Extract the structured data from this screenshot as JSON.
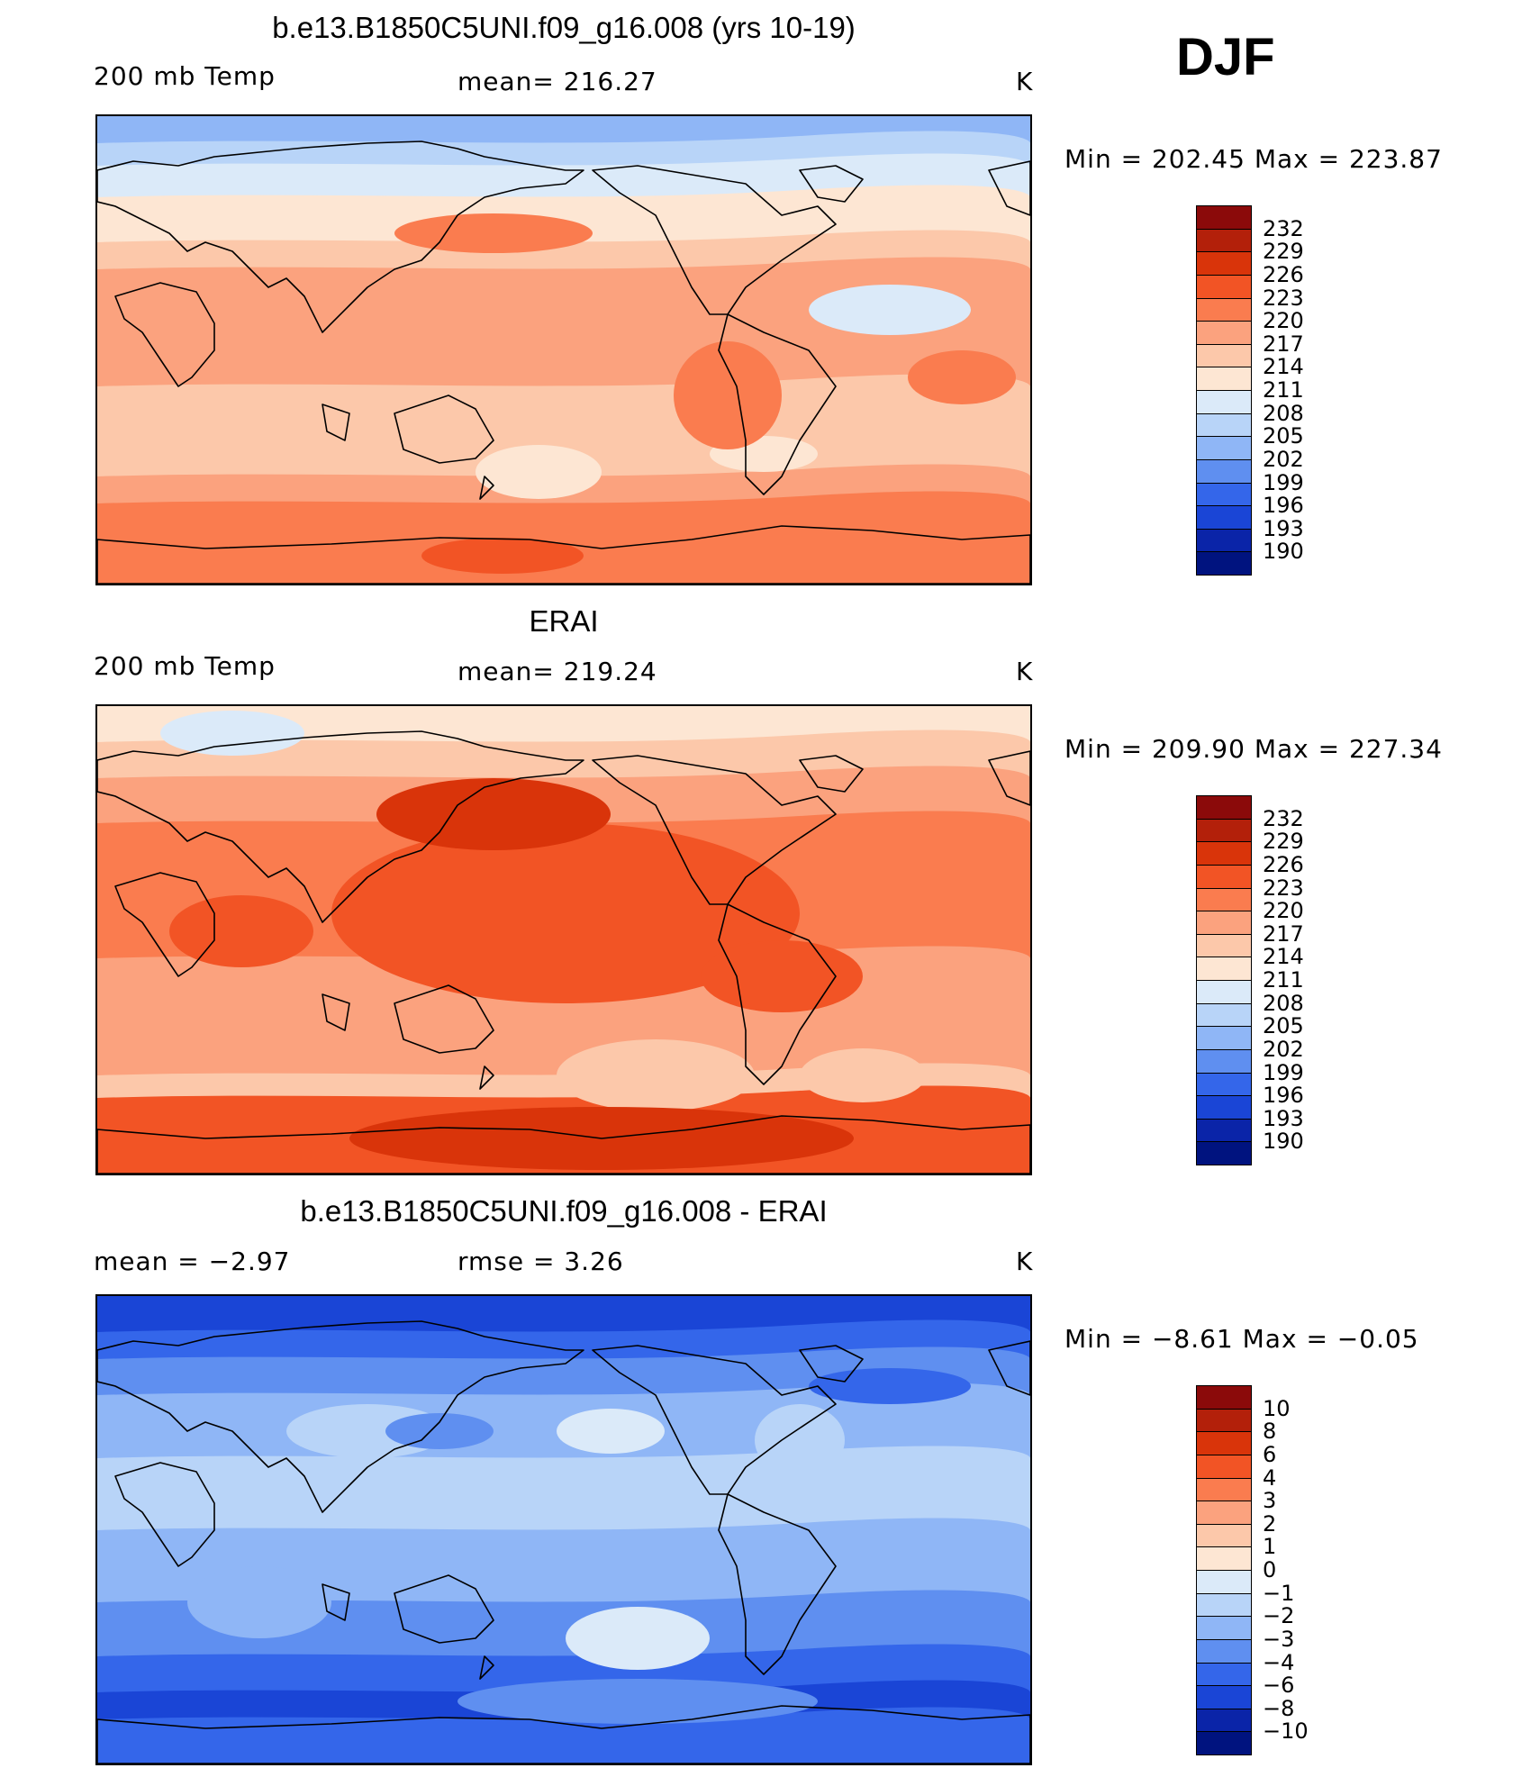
{
  "season": "DJF",
  "panels": [
    {
      "id": "model",
      "title": "b.e13.B1850C5UNI.f09_g16.008 (yrs 10-19)",
      "left_label": "200 mb Temp",
      "center_label": "mean=  216.27",
      "units": "K",
      "minmax": "Min  =  202.45  Max  =  223.87",
      "legend": {
        "labels": [
          "232",
          "229",
          "226",
          "223",
          "220",
          "217",
          "214",
          "211",
          "208",
          "205",
          "202",
          "199",
          "196",
          "193",
          "190"
        ],
        "colors": [
          "#8b0a0a",
          "#b3200a",
          "#d9340a",
          "#f25425",
          "#fa7c4f",
          "#fba27e",
          "#fcc8aa",
          "#fde6d3",
          "#dbeaf9",
          "#b8d4f8",
          "#8fb6f6",
          "#5f8ff0",
          "#3466ea",
          "#1a45d6",
          "#0a24a8",
          "#00137f"
        ]
      },
      "map_field": "model"
    },
    {
      "id": "obs",
      "title": "ERAI",
      "left_label": "200 mb Temp",
      "center_label": "mean=  219.24",
      "units": "K",
      "minmax": "Min  =  209.90  Max  =  227.34",
      "legend": {
        "labels": [
          "232",
          "229",
          "226",
          "223",
          "220",
          "217",
          "214",
          "211",
          "208",
          "205",
          "202",
          "199",
          "196",
          "193",
          "190"
        ],
        "colors": [
          "#8b0a0a",
          "#b3200a",
          "#d9340a",
          "#f25425",
          "#fa7c4f",
          "#fba27e",
          "#fcc8aa",
          "#fde6d3",
          "#dbeaf9",
          "#b8d4f8",
          "#8fb6f6",
          "#5f8ff0",
          "#3466ea",
          "#1a45d6",
          "#0a24a8",
          "#00137f"
        ]
      },
      "map_field": "obs"
    },
    {
      "id": "diff",
      "title": "b.e13.B1850C5UNI.f09_g16.008 - ERAI",
      "left_label": "mean  =    −2.97",
      "center_label": "rmse  =     3.26",
      "units": "K",
      "minmax": "Min  =    −8.61  Max  =    −0.05",
      "legend": {
        "labels": [
          "10",
          "8",
          "6",
          "4",
          "3",
          "2",
          "1",
          "0",
          "−1",
          "−2",
          "−3",
          "−4",
          "−6",
          "−8",
          "−10"
        ],
        "colors": [
          "#8b0a0a",
          "#b3200a",
          "#d9340a",
          "#f25425",
          "#fa7c4f",
          "#fba27e",
          "#fcc8aa",
          "#fde6d3",
          "#dbeaf9",
          "#b8d4f8",
          "#8fb6f6",
          "#5f8ff0",
          "#3466ea",
          "#1a45d6",
          "#0a24a8",
          "#00137f"
        ]
      },
      "map_field": "diff"
    }
  ]
}
